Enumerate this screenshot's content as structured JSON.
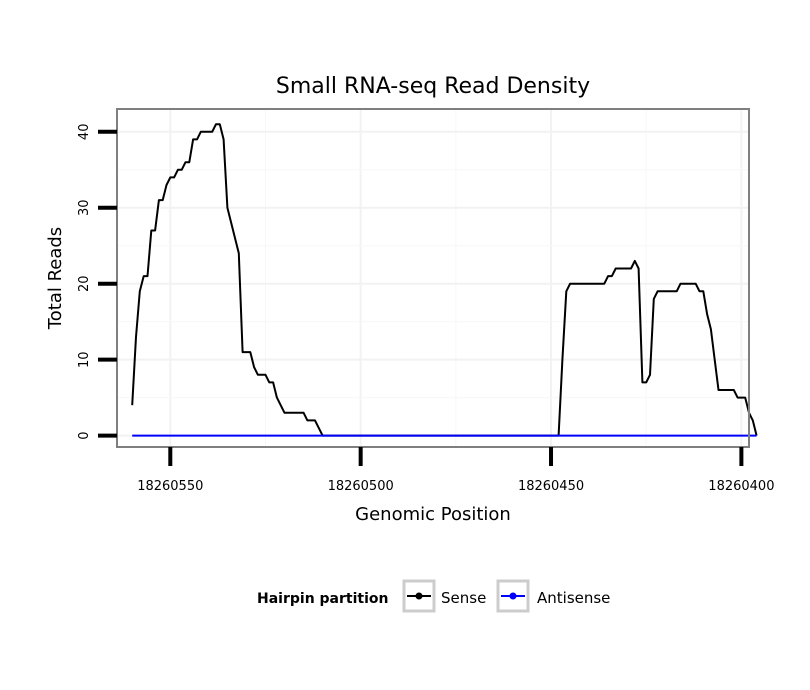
{
  "chart_data": {
    "type": "line",
    "title": "Small RNA-seq Read Density",
    "xlabel": "Genomic Position",
    "ylabel": "Total Reads",
    "xlim": [
      18260564,
      18260398
    ],
    "ylim": [
      -1.5,
      43
    ],
    "x_reversed": true,
    "x_ticks": [
      18260550,
      18260500,
      18260450,
      18260400
    ],
    "x_tick_labels": [
      "18260550",
      "18260500",
      "18260450",
      "18260400"
    ],
    "y_ticks": [
      0,
      10,
      20,
      30,
      40
    ],
    "y_tick_labels": [
      "0",
      "10",
      "20",
      "30",
      "40"
    ],
    "grid": true,
    "legend": {
      "title": "Hairpin partition",
      "placement": "bottom",
      "entries": [
        "Sense",
        "Antisense"
      ]
    },
    "series": [
      {
        "name": "Sense",
        "color": "#000000",
        "points": [
          [
            18260560,
            4
          ],
          [
            18260559,
            13
          ],
          [
            18260558,
            19
          ],
          [
            18260557,
            21
          ],
          [
            18260556,
            21
          ],
          [
            18260555,
            27
          ],
          [
            18260554,
            27
          ],
          [
            18260553,
            31
          ],
          [
            18260552,
            31
          ],
          [
            18260551,
            33
          ],
          [
            18260550,
            34
          ],
          [
            18260549,
            34
          ],
          [
            18260548,
            35
          ],
          [
            18260547,
            35
          ],
          [
            18260546,
            36
          ],
          [
            18260545,
            36
          ],
          [
            18260544,
            39
          ],
          [
            18260543,
            39
          ],
          [
            18260542,
            40
          ],
          [
            18260541,
            40
          ],
          [
            18260540,
            40
          ],
          [
            18260539,
            40
          ],
          [
            18260538,
            41
          ],
          [
            18260537,
            41
          ],
          [
            18260536,
            39
          ],
          [
            18260535,
            30
          ],
          [
            18260532,
            24
          ],
          [
            18260531,
            11
          ],
          [
            18260529,
            11
          ],
          [
            18260528,
            9
          ],
          [
            18260527,
            8
          ],
          [
            18260525,
            8
          ],
          [
            18260524,
            7
          ],
          [
            18260523,
            7
          ],
          [
            18260522,
            5
          ],
          [
            18260520,
            3
          ],
          [
            18260515,
            3
          ],
          [
            18260514,
            2
          ],
          [
            18260512,
            2
          ],
          [
            18260510,
            0
          ],
          [
            18260448,
            0
          ],
          [
            18260447,
            10
          ],
          [
            18260446,
            19
          ],
          [
            18260445,
            20
          ],
          [
            18260440,
            20
          ],
          [
            18260436,
            20
          ],
          [
            18260435,
            21
          ],
          [
            18260434,
            21
          ],
          [
            18260433,
            22
          ],
          [
            18260429,
            22
          ],
          [
            18260428,
            23
          ],
          [
            18260427,
            22
          ],
          [
            18260426,
            7
          ],
          [
            18260425,
            7
          ],
          [
            18260424,
            8
          ],
          [
            18260423,
            18
          ],
          [
            18260422,
            19
          ],
          [
            18260417,
            19
          ],
          [
            18260416,
            20
          ],
          [
            18260412,
            20
          ],
          [
            18260411,
            19
          ],
          [
            18260410,
            19
          ],
          [
            18260409,
            16
          ],
          [
            18260408,
            14
          ],
          [
            18260407,
            10
          ],
          [
            18260406,
            6
          ],
          [
            18260402,
            6
          ],
          [
            18260401,
            5
          ],
          [
            18260399,
            5
          ],
          [
            18260398,
            3
          ],
          [
            18260397,
            2
          ],
          [
            18260396,
            0
          ]
        ]
      },
      {
        "name": "Antisense",
        "color": "#0000ff",
        "points": [
          [
            18260560,
            0
          ],
          [
            18260396,
            0
          ]
        ]
      }
    ]
  }
}
